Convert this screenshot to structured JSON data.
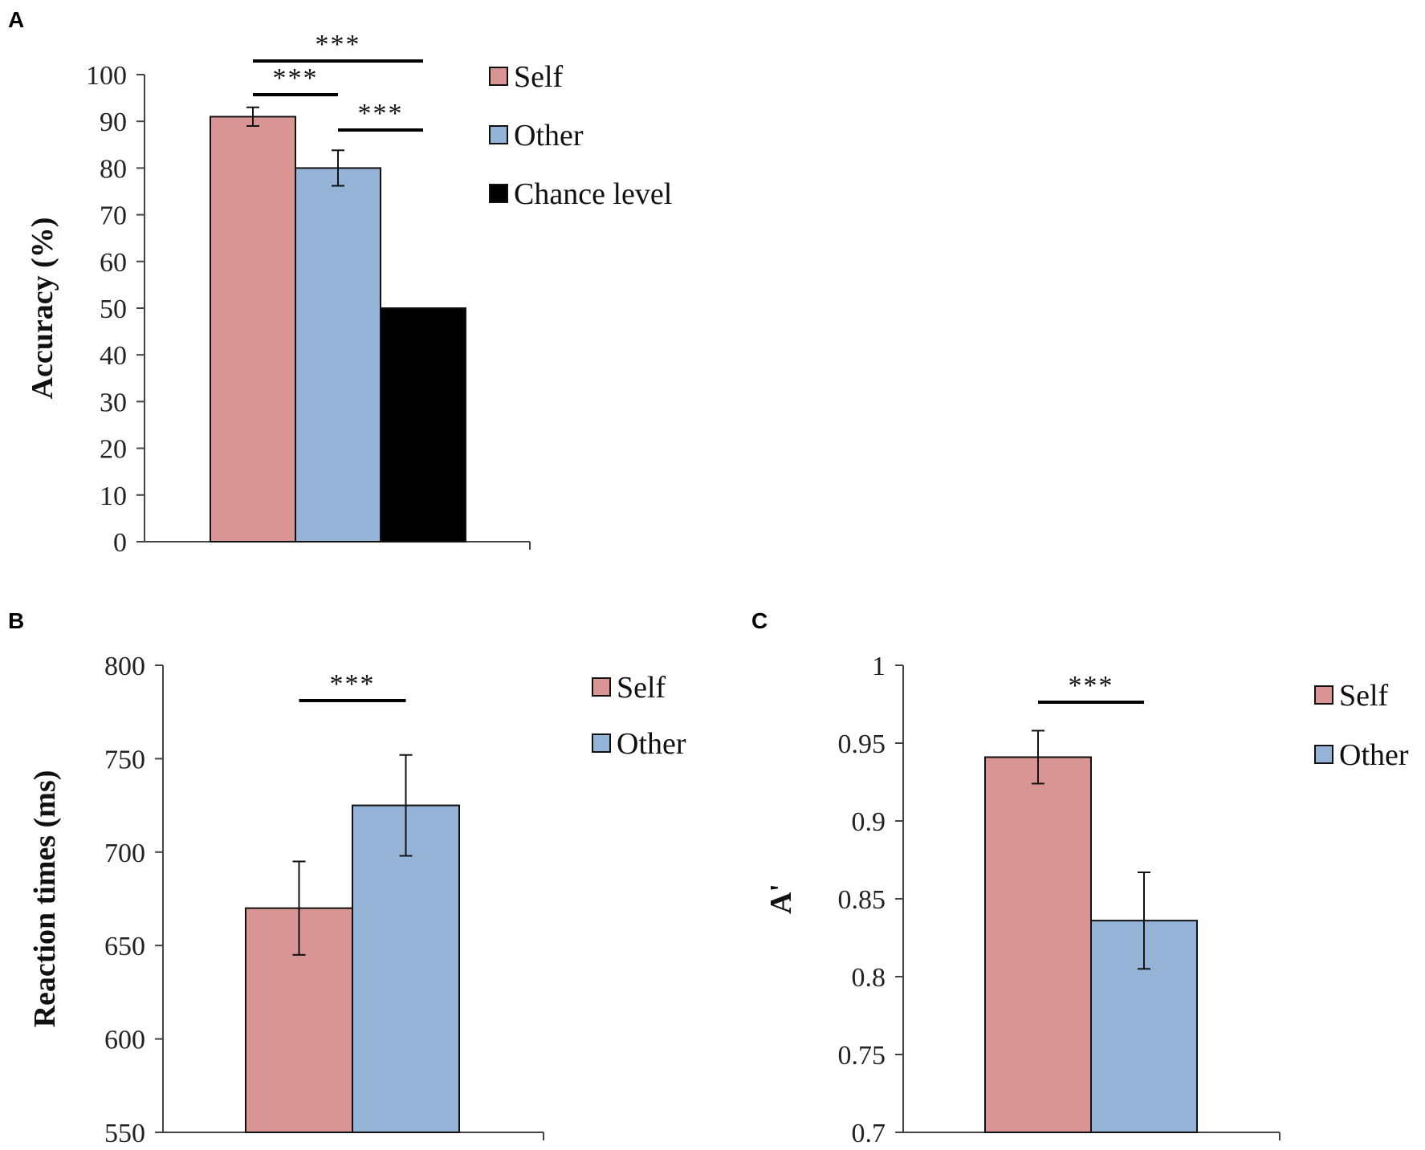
{
  "chart_data": [
    {
      "panel": "A",
      "type": "bar",
      "categories": [
        "Self",
        "Other",
        "Chance level"
      ],
      "values": [
        91,
        80,
        50
      ],
      "errors": [
        2,
        3.8,
        null
      ],
      "colors": [
        "#d99594",
        "#95b3d7",
        "#000000"
      ],
      "ylabel": "Accuracy (%)",
      "xlabel": "",
      "ylim": [
        0,
        100
      ],
      "yticks": [
        "0",
        "10",
        "20",
        "30",
        "40",
        "50",
        "60",
        "70",
        "80",
        "90",
        "100"
      ],
      "ytick_values": [
        0,
        10,
        20,
        30,
        40,
        50,
        60,
        70,
        80,
        90,
        100
      ],
      "legend": [
        "Self",
        "Other",
        "Chance level"
      ],
      "significance": [
        {
          "from": 0,
          "to": 2,
          "label": "***"
        },
        {
          "from": 0,
          "to": 1,
          "label": "***"
        },
        {
          "from": 1,
          "to": 2,
          "label": "***"
        }
      ]
    },
    {
      "panel": "B",
      "type": "bar",
      "categories": [
        "Self",
        "Other"
      ],
      "values": [
        670,
        725
      ],
      "errors": [
        25,
        27
      ],
      "colors": [
        "#d99594",
        "#95b3d7"
      ],
      "ylabel": "Reaction times (ms)",
      "xlabel": "",
      "ylim": [
        550,
        800
      ],
      "yticks": [
        "550",
        "600",
        "650",
        "700",
        "750",
        "800"
      ],
      "ytick_values": [
        550,
        600,
        650,
        700,
        750,
        800
      ],
      "legend": [
        "Self",
        "Other"
      ],
      "significance": [
        {
          "from": 0,
          "to": 1,
          "label": "***"
        }
      ]
    },
    {
      "panel": "C",
      "type": "bar",
      "categories": [
        "Self",
        "Other"
      ],
      "values": [
        0.941,
        0.836
      ],
      "errors": [
        0.017,
        0.031
      ],
      "colors": [
        "#d99594",
        "#95b3d7"
      ],
      "ylabel": "A'",
      "xlabel": "",
      "ylim": [
        0.7,
        1.0
      ],
      "yticks": [
        "0.7",
        "0.75",
        "0.8",
        "0.85",
        "0.9",
        "0.95",
        "1"
      ],
      "ytick_values": [
        0.7,
        0.75,
        0.8,
        0.85,
        0.9,
        0.95,
        1.0
      ],
      "legend": [
        "Self",
        "Other"
      ],
      "significance": [
        {
          "from": 0,
          "to": 1,
          "label": "***"
        }
      ]
    }
  ]
}
